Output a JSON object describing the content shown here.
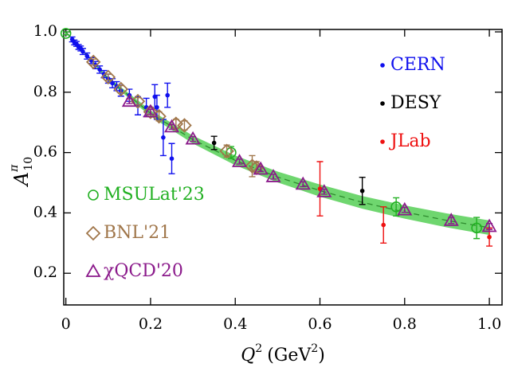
{
  "chart_data": {
    "type": "scatter",
    "xlabel": [
      "Q",
      "2",
      "(GeV",
      "2",
      ")"
    ],
    "ylabel": {
      "base": "A",
      "sup": "π",
      "sub": "10"
    },
    "xlim": [
      -0.005,
      1.03
    ],
    "ylim": [
      0.095,
      1.008
    ],
    "xticks": [
      {
        "value": 0,
        "label": "0"
      },
      0.2,
      0.4,
      0.6,
      0.8,
      {
        "value": 1,
        "label": "1.0"
      }
    ],
    "yticks": [
      0.2,
      0.4,
      0.6,
      0.8,
      {
        "value": 1,
        "label": "1.0"
      }
    ],
    "band": {
      "color": "#6fd66f",
      "x": [
        0,
        0.1,
        0.2,
        0.3,
        0.4,
        0.5,
        0.6,
        0.7,
        0.8,
        0.9,
        1.0
      ],
      "lower": [
        1.0,
        0.838,
        0.72,
        0.63,
        0.558,
        0.501,
        0.454,
        0.414,
        0.381,
        0.352,
        0.327
      ],
      "upper": [
        1.0,
        0.85,
        0.74,
        0.656,
        0.59,
        0.537,
        0.494,
        0.456,
        0.425,
        0.398,
        0.375
      ]
    },
    "curve": {
      "color": "#2e8b2e",
      "x": [
        0,
        0.1,
        0.2,
        0.3,
        0.4,
        0.5,
        0.6,
        0.7,
        0.8,
        0.9,
        1.0
      ],
      "values": [
        1.0,
        0.844,
        0.73,
        0.643,
        0.574,
        0.519,
        0.474,
        0.435,
        0.403,
        0.375,
        0.351
      ]
    },
    "series": [
      {
        "name": "CERN",
        "color": "#1010ee",
        "marker": "dot",
        "legend": "top-right",
        "x": [
          0.015,
          0.02,
          0.025,
          0.03,
          0.035,
          0.04,
          0.05,
          0.06,
          0.07,
          0.08,
          0.09,
          0.1,
          0.11,
          0.12,
          0.13,
          0.15,
          0.17,
          0.19,
          0.21,
          0.215,
          0.23,
          0.24,
          0.25
        ],
        "values": [
          0.975,
          0.965,
          0.96,
          0.95,
          0.945,
          0.935,
          0.92,
          0.905,
          0.89,
          0.875,
          0.86,
          0.845,
          0.83,
          0.82,
          0.805,
          0.79,
          0.755,
          0.75,
          0.785,
          0.75,
          0.65,
          0.79,
          0.58
        ],
        "errors": [
          0.008,
          0.008,
          0.008,
          0.008,
          0.008,
          0.01,
          0.01,
          0.01,
          0.012,
          0.012,
          0.012,
          0.015,
          0.015,
          0.015,
          0.018,
          0.02,
          0.03,
          0.03,
          0.04,
          0.04,
          0.06,
          0.04,
          0.05
        ]
      },
      {
        "name": "DESY",
        "color": "#000000",
        "marker": "dot",
        "legend": "top-right",
        "x": [
          0.35,
          0.7
        ],
        "values": [
          0.632,
          0.473
        ],
        "errors": [
          0.022,
          0.045
        ]
      },
      {
        "name": "JLab",
        "color": "#ee1111",
        "marker": "dot",
        "legend": "top-right",
        "x": [
          0.6,
          0.75,
          1.0
        ],
        "values": [
          0.48,
          0.36,
          0.32
        ],
        "errors": [
          0.09,
          0.06,
          0.03
        ]
      },
      {
        "name": "MSULat'23",
        "color": "#22b022",
        "marker": "circle",
        "legend": "bottom-left",
        "x": [
          0.0,
          0.39,
          0.78,
          0.97
        ],
        "values": [
          0.995,
          0.6,
          0.42,
          0.35
        ],
        "errors": [
          0.005,
          0.02,
          0.03,
          0.035
        ]
      },
      {
        "name": "BNL'21",
        "color": "#a0764a",
        "marker": "diamond",
        "legend": "bottom-left",
        "x": [
          0.065,
          0.1,
          0.13,
          0.17,
          0.2,
          0.22,
          0.26,
          0.28,
          0.38,
          0.44,
          0.45
        ],
        "values": [
          0.9,
          0.85,
          0.81,
          0.77,
          0.735,
          0.72,
          0.695,
          0.69,
          0.605,
          0.555,
          0.55
        ],
        "errors": [
          0.01,
          0.01,
          0.012,
          0.012,
          0.015,
          0.015,
          0.015,
          0.015,
          0.02,
          0.035,
          0.02
        ]
      },
      {
        "name": "χQCD'20",
        "color": "#8b1a8b",
        "marker": "triangle",
        "legend": "bottom-left",
        "x": [
          0.15,
          0.2,
          0.25,
          0.3,
          0.41,
          0.46,
          0.49,
          0.56,
          0.61,
          0.8,
          0.91,
          1.0
        ],
        "values": [
          0.77,
          0.735,
          0.685,
          0.645,
          0.57,
          0.545,
          0.52,
          0.495,
          0.47,
          0.41,
          0.375,
          0.355
        ],
        "errors": [
          0.008,
          0.008,
          0.008,
          0.008,
          0.008,
          0.008,
          0.008,
          0.008,
          0.008,
          0.008,
          0.01,
          0.01
        ]
      }
    ]
  }
}
